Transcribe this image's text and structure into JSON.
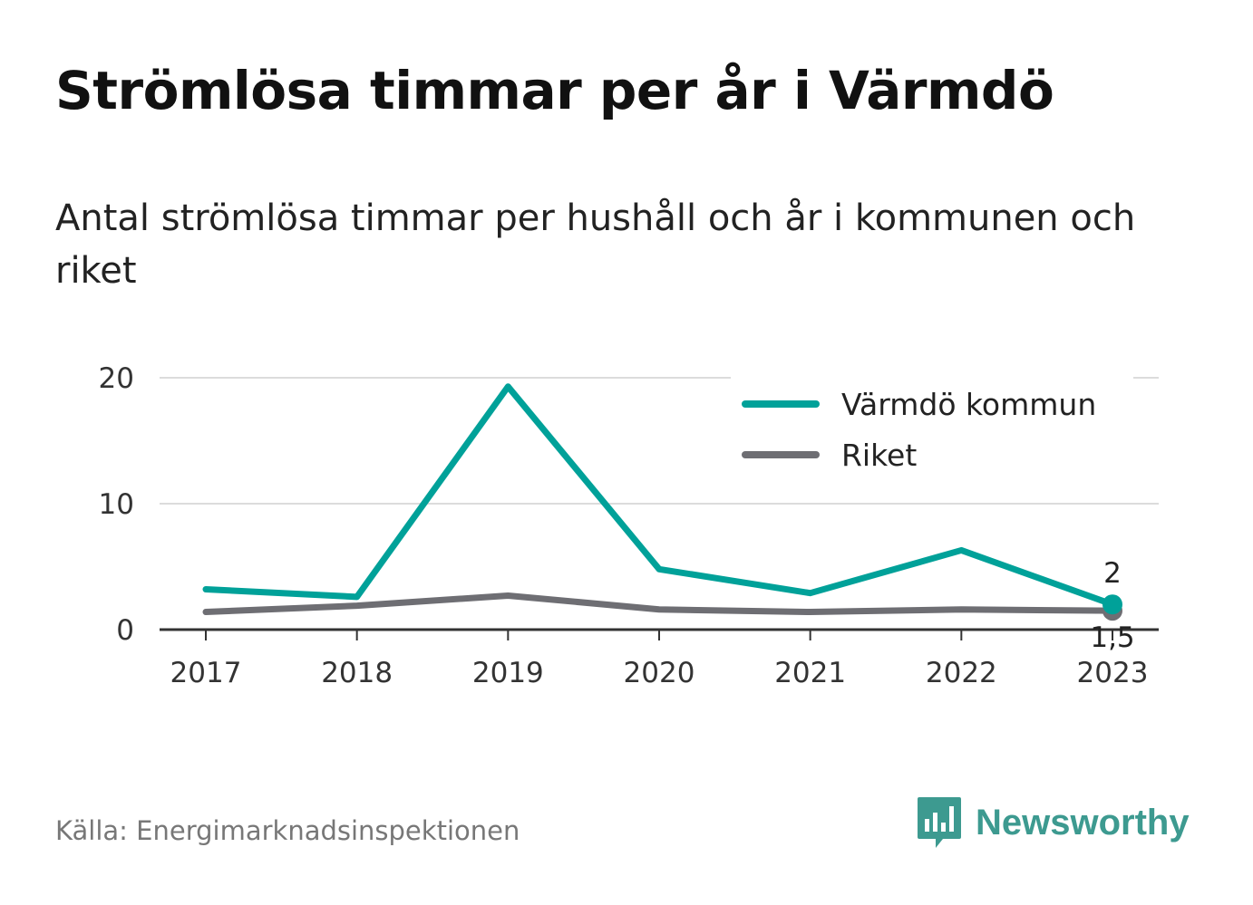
{
  "header": {
    "title": "Strömlösa timmar per år i Värmdö",
    "subtitle": "Antal strömlösa timmar per hushåll och år i kommunen och riket"
  },
  "footer": {
    "source": "Källa: Energimarknadsinspektionen",
    "brand": "Newsworthy",
    "brand_icon": "bar-chart-speech-bubble-icon",
    "brand_color": "#3d9a90"
  },
  "chart_data": {
    "type": "line",
    "title": "Strömlösa timmar per år i Värmdö",
    "x": [
      "2017",
      "2018",
      "2019",
      "2020",
      "2021",
      "2022",
      "2023"
    ],
    "ylim": [
      0,
      20
    ],
    "yticks": [
      0,
      10,
      20
    ],
    "grid": true,
    "legend_position": "top-right",
    "series": [
      {
        "name": "Värmdö kommun",
        "color": "#00a199",
        "values": [
          3.2,
          2.6,
          19.3,
          4.8,
          2.9,
          6.3,
          2.0
        ],
        "end_label": "2"
      },
      {
        "name": "Riket",
        "color": "#6e6e73",
        "values": [
          1.4,
          1.9,
          2.7,
          1.6,
          1.4,
          1.6,
          1.5
        ],
        "end_label": "1,5"
      }
    ]
  }
}
